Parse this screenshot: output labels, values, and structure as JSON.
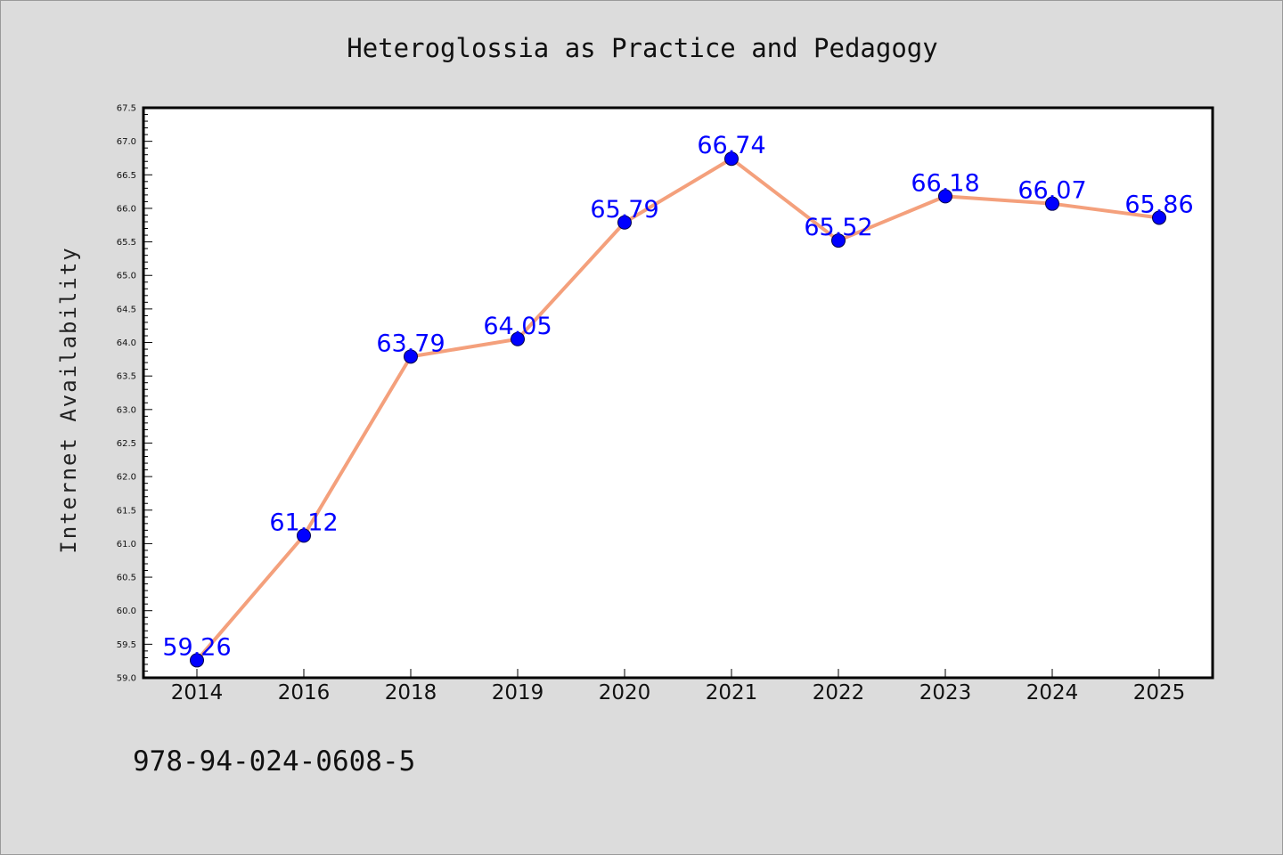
{
  "chart_data": {
    "type": "line",
    "title": "Heteroglossia as Practice and Pedagogy",
    "xlabel": "",
    "ylabel": "Internet Availability",
    "categories": [
      "2014",
      "2016",
      "2018",
      "2019",
      "2020",
      "2021",
      "2022",
      "2023",
      "2024",
      "2025"
    ],
    "series": [
      {
        "values": [
          59.26,
          61.12,
          63.79,
          64.05,
          65.79,
          66.74,
          65.52,
          66.18,
          66.07,
          65.86
        ],
        "data_labels": [
          "59.26",
          "61.12",
          "63.79",
          "64.05",
          "65.79",
          "66.74",
          "65.52",
          "66.18",
          "66.07",
          "65.86"
        ]
      }
    ],
    "ylim": [
      59.0,
      67.5
    ],
    "yticks": [
      "59.0",
      "59.5",
      "60.0",
      "60.5",
      "61.0",
      "61.5",
      "62.0",
      "62.5",
      "63.0",
      "63.5",
      "64.0",
      "64.5",
      "65.0",
      "65.5",
      "66.0",
      "66.5",
      "67.0",
      "67.5"
    ],
    "grid": false,
    "legend": "none",
    "colors": {
      "line": "#f4a07c",
      "marker": "#0000ff",
      "data_label": "#0000ff",
      "plot_background": "#ffffff",
      "figure_background": "#dcdcdc"
    }
  },
  "footnote": "978-94-024-0608-5"
}
